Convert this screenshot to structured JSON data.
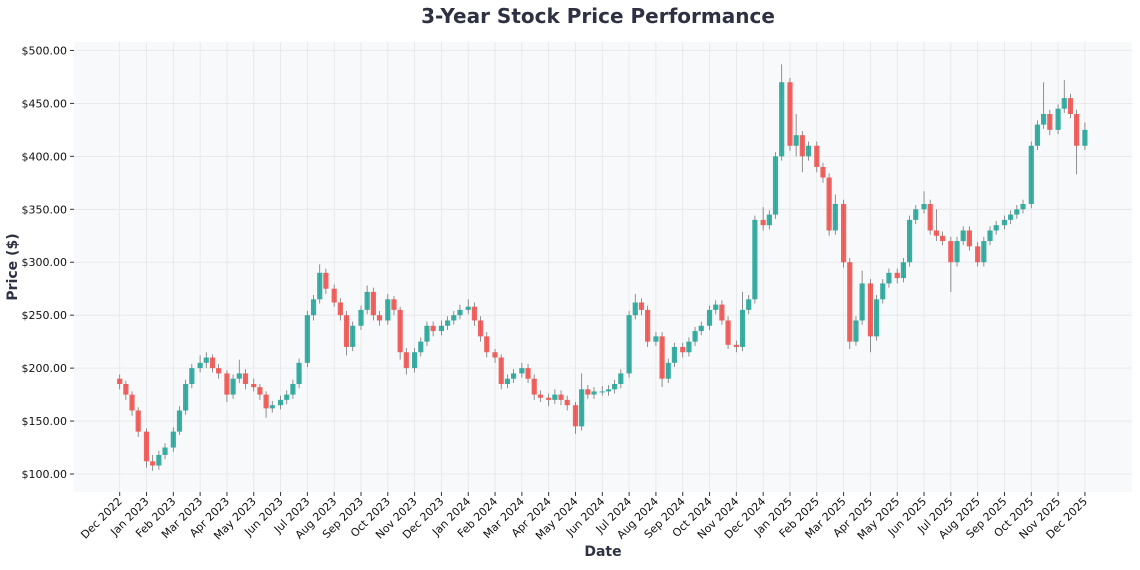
{
  "chart_data": {
    "type": "candlestick",
    "title": "3-Year Stock Price Performance",
    "xlabel": "Date",
    "ylabel": "Price ($)",
    "ylim": [
      83,
      508
    ],
    "xlim": [
      "2022-10-10",
      "2026-01-24"
    ],
    "grid": true,
    "y_ticks": [
      "$100.00",
      "$150.00",
      "$200.00",
      "$250.00",
      "$300.00",
      "$350.00",
      "$400.00",
      "$450.00",
      "$500.00"
    ],
    "y_tick_values": [
      100,
      150,
      200,
      250,
      300,
      350,
      400,
      450,
      500
    ],
    "x_ticks": [
      "Dec 2022",
      "Jan 2023",
      "Feb 2023",
      "Mar 2023",
      "Apr 2023",
      "May 2023",
      "Jun 2023",
      "Jul 2023",
      "Aug 2023",
      "Sep 2023",
      "Oct 2023",
      "Nov 2023",
      "Dec 2023",
      "Jan 2024",
      "Feb 2024",
      "Mar 2024",
      "Apr 2024",
      "May 2024",
      "Jun 2024",
      "Jul 2024",
      "Aug 2024",
      "Sep 2024",
      "Oct 2024",
      "Nov 2024",
      "Dec 2024",
      "Jan 2025",
      "Feb 2025",
      "Mar 2025",
      "Apr 2025",
      "May 2025",
      "Jun 2025",
      "Jul 2025",
      "Aug 2025",
      "Sep 2025",
      "Oct 2025",
      "Nov 2025",
      "Dec 2025"
    ],
    "colors": {
      "up": "#26a69a",
      "down": "#ef5350",
      "background": "#f8f9fa",
      "title": "#2d3142"
    },
    "columns": [
      "date",
      "open",
      "high",
      "low",
      "close"
    ],
    "candles": [
      [
        "2022-12-01",
        190,
        194,
        180,
        185
      ],
      [
        "2022-12-08",
        185,
        188,
        170,
        175
      ],
      [
        "2022-12-15",
        175,
        178,
        155,
        160
      ],
      [
        "2022-12-22",
        160,
        163,
        135,
        140
      ],
      [
        "2023-01-01",
        140,
        143,
        106,
        112
      ],
      [
        "2023-01-08",
        112,
        118,
        103,
        108
      ],
      [
        "2023-01-15",
        108,
        122,
        104,
        118
      ],
      [
        "2023-01-22",
        118,
        129,
        114,
        125
      ],
      [
        "2023-02-01",
        125,
        144,
        121,
        140
      ],
      [
        "2023-02-08",
        140,
        164,
        137,
        160
      ],
      [
        "2023-02-15",
        160,
        189,
        156,
        185
      ],
      [
        "2023-02-22",
        185,
        204,
        181,
        200
      ],
      [
        "2023-03-01",
        200,
        212,
        196,
        205
      ],
      [
        "2023-03-08",
        205,
        215,
        200,
        210
      ],
      [
        "2023-03-15",
        210,
        213,
        196,
        200
      ],
      [
        "2023-03-22",
        200,
        204,
        190,
        195
      ],
      [
        "2023-04-01",
        195,
        198,
        168,
        175
      ],
      [
        "2023-04-08",
        175,
        194,
        171,
        190
      ],
      [
        "2023-04-15",
        190,
        208,
        186,
        195
      ],
      [
        "2023-04-22",
        195,
        199,
        180,
        185
      ],
      [
        "2023-05-01",
        185,
        190,
        178,
        182
      ],
      [
        "2023-05-08",
        182,
        185,
        170,
        175
      ],
      [
        "2023-05-15",
        175,
        178,
        153,
        162
      ],
      [
        "2023-05-22",
        162,
        169,
        158,
        165
      ],
      [
        "2023-06-01",
        165,
        174,
        161,
        170
      ],
      [
        "2023-06-08",
        170,
        179,
        166,
        175
      ],
      [
        "2023-06-15",
        175,
        189,
        171,
        185
      ],
      [
        "2023-06-22",
        185,
        209,
        181,
        205
      ],
      [
        "2023-07-01",
        205,
        254,
        201,
        250
      ],
      [
        "2023-07-08",
        250,
        269,
        245,
        265
      ],
      [
        "2023-07-15",
        265,
        298,
        261,
        290
      ],
      [
        "2023-07-22",
        290,
        294,
        270,
        275
      ],
      [
        "2023-08-01",
        275,
        279,
        258,
        262
      ],
      [
        "2023-08-08",
        262,
        266,
        245,
        250
      ],
      [
        "2023-08-15",
        250,
        254,
        212,
        220
      ],
      [
        "2023-08-22",
        220,
        244,
        216,
        240
      ],
      [
        "2023-09-01",
        240,
        259,
        236,
        255
      ],
      [
        "2023-09-08",
        255,
        278,
        251,
        272
      ],
      [
        "2023-09-15",
        272,
        276,
        245,
        250
      ],
      [
        "2023-09-22",
        250,
        254,
        240,
        245
      ],
      [
        "2023-10-01",
        245,
        270,
        241,
        265
      ],
      [
        "2023-10-08",
        265,
        268,
        250,
        255
      ],
      [
        "2023-10-15",
        255,
        258,
        208,
        215
      ],
      [
        "2023-10-22",
        215,
        219,
        194,
        200
      ],
      [
        "2023-11-01",
        200,
        219,
        196,
        215
      ],
      [
        "2023-11-08",
        215,
        229,
        211,
        225
      ],
      [
        "2023-11-15",
        225,
        244,
        221,
        240
      ],
      [
        "2023-11-22",
        240,
        244,
        230,
        235
      ],
      [
        "2023-12-01",
        235,
        245,
        231,
        240
      ],
      [
        "2023-12-08",
        240,
        249,
        236,
        245
      ],
      [
        "2023-12-15",
        245,
        254,
        241,
        250
      ],
      [
        "2023-12-22",
        250,
        260,
        246,
        255
      ],
      [
        "2024-01-01",
        255,
        265,
        251,
        258
      ],
      [
        "2024-01-08",
        258,
        262,
        240,
        245
      ],
      [
        "2024-01-15",
        245,
        249,
        225,
        230
      ],
      [
        "2024-01-22",
        230,
        234,
        210,
        215
      ],
      [
        "2024-02-01",
        215,
        218,
        205,
        210
      ],
      [
        "2024-02-08",
        210,
        213,
        180,
        185
      ],
      [
        "2024-02-15",
        185,
        194,
        181,
        190
      ],
      [
        "2024-02-22",
        190,
        199,
        186,
        195
      ],
      [
        "2024-03-01",
        195,
        205,
        191,
        200
      ],
      [
        "2024-03-08",
        200,
        204,
        186,
        190
      ],
      [
        "2024-03-15",
        190,
        194,
        170,
        175
      ],
      [
        "2024-03-22",
        175,
        179,
        168,
        172
      ],
      [
        "2024-04-01",
        172,
        176,
        164,
        170
      ],
      [
        "2024-04-08",
        170,
        180,
        166,
        175
      ],
      [
        "2024-04-15",
        175,
        179,
        165,
        170
      ],
      [
        "2024-04-22",
        170,
        174,
        160,
        165
      ],
      [
        "2024-05-01",
        165,
        168,
        138,
        145
      ],
      [
        "2024-05-08",
        145,
        195,
        141,
        180
      ],
      [
        "2024-05-15",
        180,
        184,
        171,
        175
      ],
      [
        "2024-05-22",
        175,
        182,
        171,
        178
      ],
      [
        "2024-06-01",
        178,
        183,
        174,
        178
      ],
      [
        "2024-06-08",
        178,
        184,
        174,
        180
      ],
      [
        "2024-06-15",
        180,
        189,
        176,
        185
      ],
      [
        "2024-06-22",
        185,
        199,
        181,
        195
      ],
      [
        "2024-07-01",
        195,
        254,
        191,
        250
      ],
      [
        "2024-07-08",
        250,
        270,
        246,
        262
      ],
      [
        "2024-07-15",
        262,
        266,
        250,
        255
      ],
      [
        "2024-07-22",
        255,
        259,
        220,
        225
      ],
      [
        "2024-08-01",
        225,
        234,
        221,
        230
      ],
      [
        "2024-08-08",
        230,
        234,
        182,
        190
      ],
      [
        "2024-08-15",
        190,
        209,
        186,
        205
      ],
      [
        "2024-08-22",
        205,
        224,
        201,
        220
      ],
      [
        "2024-09-01",
        220,
        224,
        210,
        215
      ],
      [
        "2024-09-08",
        215,
        229,
        211,
        225
      ],
      [
        "2024-09-15",
        225,
        239,
        221,
        235
      ],
      [
        "2024-09-22",
        235,
        244,
        231,
        240
      ],
      [
        "2024-10-01",
        240,
        259,
        236,
        255
      ],
      [
        "2024-10-08",
        255,
        264,
        251,
        260
      ],
      [
        "2024-10-15",
        260,
        264,
        241,
        245
      ],
      [
        "2024-10-22",
        245,
        249,
        218,
        222
      ],
      [
        "2024-11-01",
        222,
        226,
        215,
        220
      ],
      [
        "2024-11-08",
        220,
        272,
        216,
        255
      ],
      [
        "2024-11-15",
        255,
        269,
        251,
        265
      ],
      [
        "2024-11-22",
        265,
        344,
        261,
        340
      ],
      [
        "2024-12-01",
        340,
        352,
        330,
        335
      ],
      [
        "2024-12-08",
        335,
        349,
        331,
        345
      ],
      [
        "2024-12-15",
        345,
        404,
        341,
        400
      ],
      [
        "2024-12-22",
        400,
        487,
        396,
        470
      ],
      [
        "2025-01-01",
        470,
        474,
        405,
        410
      ],
      [
        "2025-01-08",
        410,
        440,
        400,
        420
      ],
      [
        "2025-01-15",
        420,
        424,
        385,
        400
      ],
      [
        "2025-01-22",
        400,
        414,
        396,
        410
      ],
      [
        "2025-02-01",
        410,
        414,
        385,
        390
      ],
      [
        "2025-02-08",
        390,
        394,
        375,
        380
      ],
      [
        "2025-02-15",
        380,
        384,
        325,
        330
      ],
      [
        "2025-02-22",
        330,
        364,
        326,
        355
      ],
      [
        "2025-03-01",
        355,
        359,
        295,
        300
      ],
      [
        "2025-03-08",
        300,
        304,
        218,
        225
      ],
      [
        "2025-03-15",
        225,
        249,
        221,
        245
      ],
      [
        "2025-03-22",
        245,
        292,
        241,
        280
      ],
      [
        "2025-04-01",
        280,
        284,
        215,
        230
      ],
      [
        "2025-04-08",
        230,
        269,
        226,
        265
      ],
      [
        "2025-04-15",
        265,
        284,
        261,
        280
      ],
      [
        "2025-04-22",
        280,
        294,
        276,
        290
      ],
      [
        "2025-05-01",
        290,
        294,
        280,
        285
      ],
      [
        "2025-05-08",
        285,
        304,
        281,
        300
      ],
      [
        "2025-05-15",
        300,
        344,
        296,
        340
      ],
      [
        "2025-05-22",
        340,
        354,
        336,
        350
      ],
      [
        "2025-06-01",
        350,
        367,
        346,
        355
      ],
      [
        "2025-06-08",
        355,
        359,
        326,
        330
      ],
      [
        "2025-06-15",
        330,
        350,
        320,
        325
      ],
      [
        "2025-06-22",
        325,
        329,
        316,
        320
      ],
      [
        "2025-07-01",
        320,
        324,
        272,
        300
      ],
      [
        "2025-07-08",
        300,
        324,
        296,
        320
      ],
      [
        "2025-07-15",
        320,
        334,
        316,
        330
      ],
      [
        "2025-07-22",
        330,
        334,
        311,
        315
      ],
      [
        "2025-08-01",
        315,
        319,
        296,
        300
      ],
      [
        "2025-08-08",
        300,
        324,
        296,
        320
      ],
      [
        "2025-08-15",
        320,
        334,
        316,
        330
      ],
      [
        "2025-08-22",
        330,
        339,
        326,
        335
      ],
      [
        "2025-09-01",
        335,
        344,
        331,
        340
      ],
      [
        "2025-09-08",
        340,
        349,
        336,
        345
      ],
      [
        "2025-09-15",
        345,
        354,
        341,
        350
      ],
      [
        "2025-09-22",
        350,
        359,
        346,
        355
      ],
      [
        "2025-10-01",
        355,
        414,
        351,
        410
      ],
      [
        "2025-10-08",
        410,
        434,
        406,
        430
      ],
      [
        "2025-10-15",
        430,
        470,
        426,
        440
      ],
      [
        "2025-10-22",
        440,
        444,
        420,
        425
      ],
      [
        "2025-11-01",
        425,
        449,
        421,
        445
      ],
      [
        "2025-11-08",
        445,
        472,
        441,
        455
      ],
      [
        "2025-11-15",
        455,
        459,
        436,
        440
      ],
      [
        "2025-11-22",
        440,
        444,
        383,
        410
      ],
      [
        "2025-12-01",
        410,
        432,
        406,
        425
      ]
    ]
  }
}
